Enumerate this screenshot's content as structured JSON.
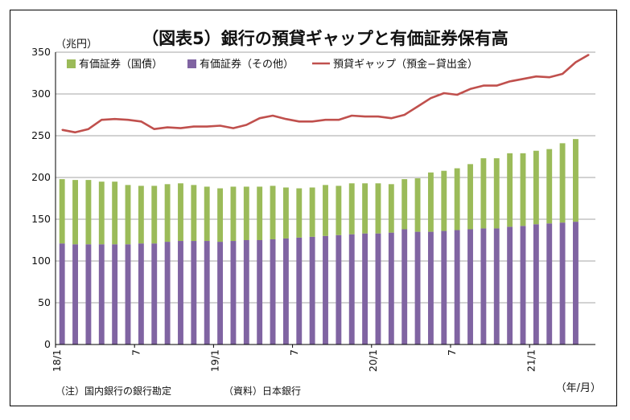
{
  "chart_data": {
    "type": "bar",
    "title": "（図表5）銀行の預貸ギャップと有価証券保有高",
    "yunit": "（兆円）",
    "xunit": "（年/月）",
    "ylim": [
      0,
      350
    ],
    "yticks": [
      0,
      50,
      100,
      150,
      200,
      250,
      300,
      350
    ],
    "grid": true,
    "legend_position": "top-left",
    "x_tick_labels": [
      {
        "index": 0,
        "label": "18/1"
      },
      {
        "index": 6,
        "label": "7"
      },
      {
        "index": 12,
        "label": "19/1"
      },
      {
        "index": 18,
        "label": "7"
      },
      {
        "index": 24,
        "label": "20/1"
      },
      {
        "index": 30,
        "label": "7"
      },
      {
        "index": 36,
        "label": "21/1"
      }
    ],
    "series": [
      {
        "name": "有価証券（その他）",
        "type": "bar-stacked",
        "color": "#8064a2",
        "values": [
          121,
          120,
          120,
          120,
          120,
          120,
          121,
          121,
          123,
          124,
          124,
          124,
          123,
          124,
          125,
          125,
          126,
          127,
          128,
          129,
          130,
          131,
          132,
          133,
          133,
          134,
          138,
          135,
          135,
          136,
          137,
          138,
          139,
          139,
          141,
          142,
          144,
          145,
          146,
          147
        ]
      },
      {
        "name": "有価証券（国債）",
        "type": "bar-stacked",
        "color": "#9bbb59",
        "values": [
          77,
          77,
          77,
          75,
          75,
          71,
          69,
          69,
          69,
          69,
          67,
          65,
          64,
          65,
          64,
          64,
          64,
          61,
          59,
          59,
          61,
          59,
          61,
          60,
          60,
          58,
          60,
          64,
          71,
          72,
          74,
          78,
          84,
          84,
          88,
          87,
          88,
          89,
          95,
          99
        ]
      },
      {
        "name": "預貸ギャップ（預金−貸出金）",
        "type": "line",
        "color": "#c0504d",
        "values": [
          257,
          254,
          258,
          269,
          270,
          269,
          267,
          258,
          260,
          259,
          261,
          261,
          262,
          259,
          263,
          271,
          274,
          270,
          267,
          267,
          269,
          269,
          274,
          273,
          273,
          271,
          275,
          285,
          295,
          301,
          299,
          306,
          310,
          310,
          315,
          318,
          321,
          320,
          324,
          338,
          347
        ]
      }
    ]
  },
  "footnotes": {
    "note": "（注）国内銀行の銀行勘定",
    "source": "（資料）日本銀行"
  }
}
